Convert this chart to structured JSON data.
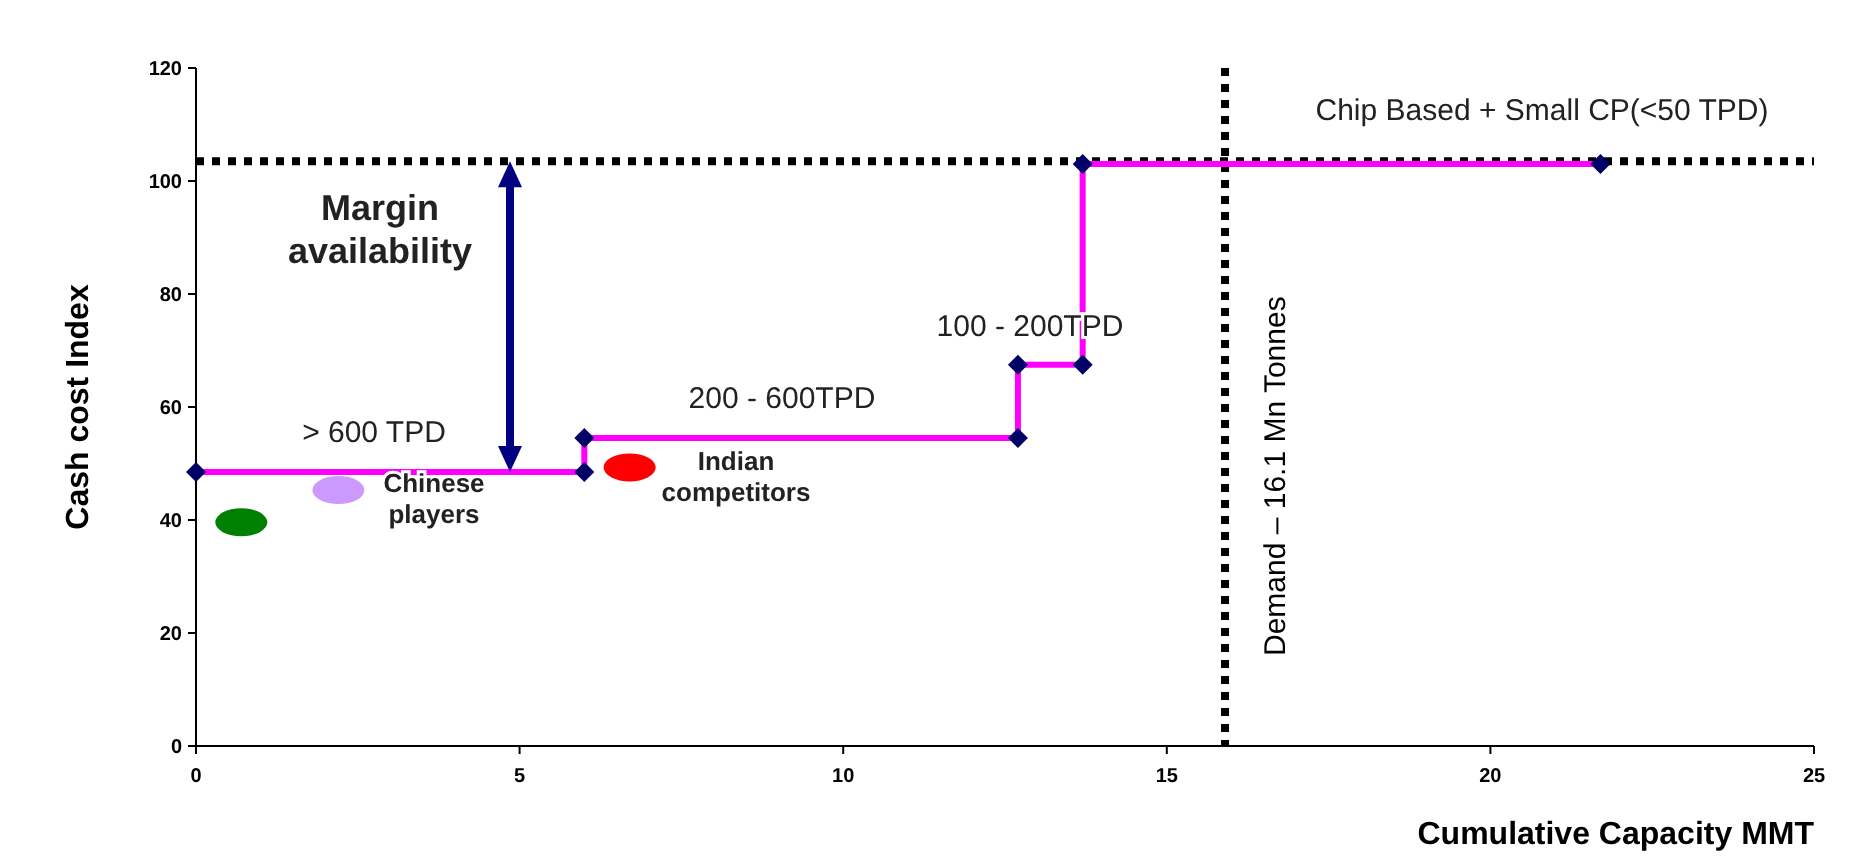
{
  "chart_data": {
    "type": "line",
    "xlabel": "Cumulative Capacity MMT",
    "ylabel": "Cash cost Index",
    "xlim": [
      0,
      25
    ],
    "xticks": [
      0,
      5,
      10,
      15,
      20,
      25
    ],
    "ylim": [
      0,
      120
    ],
    "yticks": [
      0,
      20,
      40,
      60,
      80,
      100,
      120
    ],
    "grid": false,
    "series": [
      {
        "color": "#ff00ff",
        "marker": "diamond",
        "x": [
          0,
          6,
          6,
          12.7,
          12.7,
          13.7,
          13.7,
          21.7
        ],
        "values": [
          48.5,
          48.5,
          54.5,
          54.5,
          67.5,
          67.5,
          103,
          103
        ]
      },
      {
        "type": "scatter",
        "marker": "circle",
        "x": [
          0.7,
          2.2,
          6.7
        ],
        "values": [
          39.6,
          45.3,
          49.3
        ],
        "colors": [
          "#008000",
          "#cc99ff",
          "#ff0000"
        ]
      }
    ],
    "ref_lines": [
      {
        "axis": "y",
        "value": 103.5,
        "line_style": "dotted",
        "color": "#000000"
      },
      {
        "axis": "x",
        "value": 15.9,
        "label": "Demand – 16.1  Mn Tonnes",
        "line_style": "dotted",
        "color": "#000000"
      }
    ],
    "annotations": [
      "> 600 TPD",
      "200 - 600TPD",
      "100 - 200TPD",
      "Chip Based + Small CP(<50 TPD)",
      "Margin availability",
      "Chinese players",
      "Indian competitors"
    ]
  }
}
